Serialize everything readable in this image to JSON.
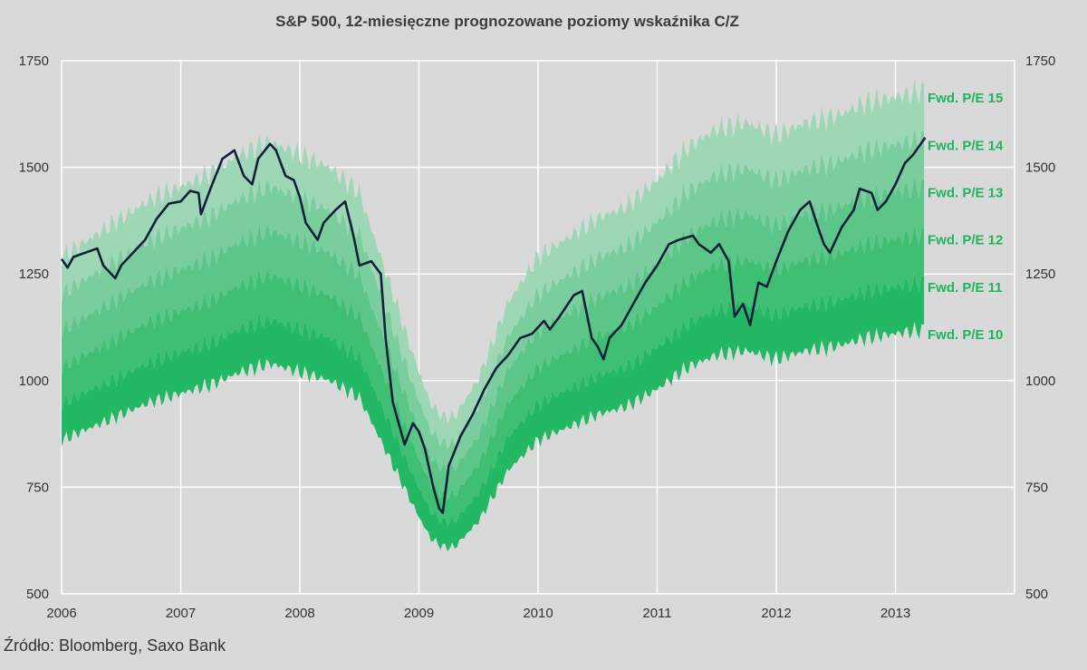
{
  "chart_data": {
    "type": "area",
    "title": "S&P 500, 12-miesięczne prognozowane poziomy wskaźnika C/Z",
    "source": "Źródło: Bloomberg, Saxo Bank",
    "xlabel": "",
    "ylabel": "",
    "x_ticks": [
      "2006",
      "2007",
      "2008",
      "2009",
      "2010",
      "2011",
      "2012",
      "2013"
    ],
    "xlim": [
      2006,
      2014
    ],
    "ylim": [
      500,
      1750
    ],
    "y_ticks": [
      500,
      750,
      1000,
      1250,
      1500,
      1750
    ],
    "y_axis_right": true,
    "grid": true,
    "colors": {
      "background": "#d9d9d9",
      "index_line": "#14203a",
      "label_text": "#1eb45c",
      "bands": [
        "#23b864",
        "#3ebf74",
        "#5cc588",
        "#7acd9c",
        "#9ed7b6"
      ]
    },
    "band_labels": [
      "Fwd. P/E 15",
      "Fwd. P/E 14",
      "Fwd. P/E 13",
      "Fwd. P/E 12",
      "Fwd. P/E 11",
      "Fwd. P/E 10"
    ],
    "forward_eps": {
      "x": [
        2006.0,
        2006.25,
        2006.5,
        2006.75,
        2007.0,
        2007.25,
        2007.5,
        2007.75,
        2008.0,
        2008.25,
        2008.5,
        2008.75,
        2009.0,
        2009.1,
        2009.2,
        2009.3,
        2009.5,
        2009.75,
        2010.0,
        2010.25,
        2010.5,
        2010.75,
        2011.0,
        2011.25,
        2011.5,
        2011.75,
        2012.0,
        2012.25,
        2012.5,
        2012.75,
        2013.0,
        2013.25
      ],
      "values": [
        86,
        89,
        92,
        95,
        97,
        99,
        102,
        104,
        102,
        100,
        96,
        82,
        68,
        63,
        61,
        61,
        67,
        79,
        86,
        89,
        92,
        94,
        98,
        103,
        106,
        107,
        105,
        107,
        108,
        110,
        111,
        112
      ]
    },
    "series": [
      {
        "name": "S&P 500",
        "x": [
          2006.0,
          2006.05,
          2006.1,
          2006.2,
          2006.3,
          2006.35,
          2006.45,
          2006.5,
          2006.6,
          2006.7,
          2006.8,
          2006.9,
          2007.0,
          2007.08,
          2007.15,
          2007.17,
          2007.25,
          2007.35,
          2007.45,
          2007.53,
          2007.6,
          2007.65,
          2007.75,
          2007.8,
          2007.88,
          2007.95,
          2008.0,
          2008.05,
          2008.15,
          2008.2,
          2008.3,
          2008.38,
          2008.45,
          2008.5,
          2008.6,
          2008.68,
          2008.72,
          2008.78,
          2008.83,
          2008.88,
          2008.95,
          2009.0,
          2009.05,
          2009.12,
          2009.17,
          2009.2,
          2009.25,
          2009.35,
          2009.45,
          2009.55,
          2009.65,
          2009.75,
          2009.85,
          2009.95,
          2010.05,
          2010.1,
          2010.18,
          2010.3,
          2010.37,
          2010.45,
          2010.5,
          2010.55,
          2010.6,
          2010.7,
          2010.8,
          2010.9,
          2011.0,
          2011.1,
          2011.18,
          2011.3,
          2011.35,
          2011.45,
          2011.52,
          2011.6,
          2011.65,
          2011.72,
          2011.78,
          2011.85,
          2011.92,
          2012.0,
          2012.1,
          2012.2,
          2012.28,
          2012.35,
          2012.4,
          2012.45,
          2012.55,
          2012.65,
          2012.7,
          2012.8,
          2012.85,
          2012.92,
          2013.0,
          2013.08,
          2013.15,
          2013.25
        ],
        "values": [
          1285,
          1265,
          1290,
          1300,
          1310,
          1270,
          1240,
          1270,
          1300,
          1330,
          1380,
          1415,
          1420,
          1445,
          1440,
          1390,
          1450,
          1520,
          1540,
          1480,
          1460,
          1520,
          1555,
          1540,
          1480,
          1470,
          1430,
          1370,
          1330,
          1370,
          1400,
          1420,
          1340,
          1270,
          1280,
          1250,
          1100,
          950,
          900,
          850,
          900,
          880,
          840,
          750,
          700,
          690,
          800,
          870,
          920,
          980,
          1030,
          1060,
          1100,
          1110,
          1140,
          1120,
          1150,
          1200,
          1210,
          1100,
          1080,
          1050,
          1100,
          1130,
          1180,
          1230,
          1270,
          1320,
          1330,
          1340,
          1320,
          1300,
          1320,
          1280,
          1150,
          1180,
          1130,
          1230,
          1220,
          1280,
          1350,
          1400,
          1420,
          1360,
          1320,
          1300,
          1360,
          1400,
          1450,
          1440,
          1400,
          1420,
          1460,
          1510,
          1530,
          1570
        ]
      }
    ]
  }
}
